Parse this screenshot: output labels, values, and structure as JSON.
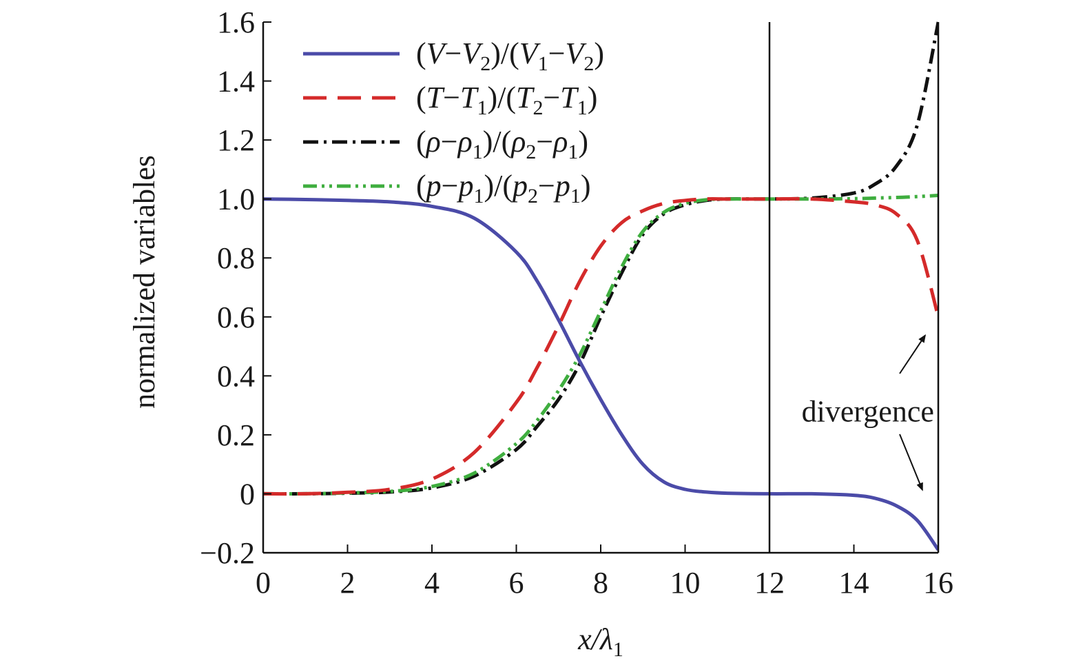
{
  "chart_data": {
    "type": "line",
    "xlabel": {
      "main": "x/λ",
      "sub": "1"
    },
    "ylabel": "normalized variables",
    "xlim": [
      0,
      16
    ],
    "ylim": [
      -0.2,
      1.6
    ],
    "xticks": [
      "0",
      "2",
      "4",
      "6",
      "8",
      "10",
      "12",
      "14",
      "16"
    ],
    "xtick_values": [
      0,
      2,
      4,
      6,
      8,
      10,
      12,
      14,
      16
    ],
    "yticks": [
      "−0.2",
      "0",
      "0.2",
      "0.4",
      "0.6",
      "0.8",
      "1.0",
      "1.2",
      "1.4",
      "1.6"
    ],
    "ytick_values": [
      -0.2,
      0,
      0.2,
      0.4,
      0.6,
      0.8,
      1.0,
      1.2,
      1.4,
      1.6
    ],
    "grid": false,
    "legend_position": "top-left",
    "reference_line_x": 12,
    "x": [
      0,
      1,
      2,
      3,
      4,
      5,
      6,
      6.5,
      7,
      7.5,
      8,
      8.5,
      9,
      9.5,
      10,
      10.5,
      11,
      12,
      13,
      14,
      14.5,
      15,
      15.5,
      16
    ],
    "series": [
      {
        "name_parts": [
          {
            "t": "(",
            "s": false
          },
          {
            "t": "V",
            "s": false
          },
          {
            "t": "−",
            "s": false
          },
          {
            "t": "V",
            "s": false
          },
          {
            "t": "2",
            "s": true
          },
          {
            "t": ")/(",
            "s": false
          },
          {
            "t": "V",
            "s": false
          },
          {
            "t": "1",
            "s": true
          },
          {
            "t": "−",
            "s": false
          },
          {
            "t": "V",
            "s": false
          },
          {
            "t": "2",
            "s": true
          },
          {
            "t": ")",
            "s": false
          }
        ],
        "color": "#4b4ba8",
        "dash": "",
        "values": [
          1.0,
          0.998,
          0.995,
          0.99,
          0.975,
          0.935,
          0.82,
          0.72,
          0.59,
          0.45,
          0.32,
          0.2,
          0.1,
          0.04,
          0.015,
          0.006,
          0.002,
          0.0,
          0.0,
          -0.005,
          -0.015,
          -0.04,
          -0.09,
          -0.19
        ]
      },
      {
        "name_parts": [
          {
            "t": "(",
            "s": false
          },
          {
            "t": "T",
            "s": false
          },
          {
            "t": "−",
            "s": false
          },
          {
            "t": "T",
            "s": false
          },
          {
            "t": "1",
            "s": true
          },
          {
            "t": ")/(",
            "s": false
          },
          {
            "t": "T",
            "s": false
          },
          {
            "t": "2",
            "s": true
          },
          {
            "t": "−",
            "s": false
          },
          {
            "t": "T",
            "s": false
          },
          {
            "t": "1",
            "s": true
          },
          {
            "t": ")",
            "s": false
          }
        ],
        "color": "#d42a2a",
        "dash": "34,16",
        "values": [
          0.0,
          0.0,
          0.005,
          0.015,
          0.05,
          0.14,
          0.31,
          0.43,
          0.57,
          0.72,
          0.84,
          0.92,
          0.96,
          0.985,
          0.995,
          1.0,
          1.0,
          1.0,
          1.0,
          0.99,
          0.98,
          0.95,
          0.86,
          0.6
        ]
      },
      {
        "name_parts": [
          {
            "t": "(",
            "s": false
          },
          {
            "t": "ρ",
            "s": false
          },
          {
            "t": "−",
            "s": false
          },
          {
            "t": "ρ",
            "s": false
          },
          {
            "t": "1",
            "s": true
          },
          {
            "t": ")/(",
            "s": false
          },
          {
            "t": "ρ",
            "s": false
          },
          {
            "t": "2",
            "s": true
          },
          {
            "t": "−",
            "s": false
          },
          {
            "t": "ρ",
            "s": false
          },
          {
            "t": "1",
            "s": true
          },
          {
            "t": ")",
            "s": false
          }
        ],
        "color": "#111111",
        "dash": "22,8,4,8",
        "values": [
          0.0,
          0.0,
          0.002,
          0.006,
          0.02,
          0.06,
          0.15,
          0.23,
          0.32,
          0.44,
          0.6,
          0.75,
          0.88,
          0.95,
          0.98,
          0.995,
          1.0,
          1.0,
          1.003,
          1.02,
          1.05,
          1.11,
          1.25,
          1.6
        ]
      },
      {
        "name_parts": [
          {
            "t": "(",
            "s": false
          },
          {
            "t": "p",
            "s": false
          },
          {
            "t": "−",
            "s": false
          },
          {
            "t": "p",
            "s": false
          },
          {
            "t": "1",
            "s": true
          },
          {
            "t": ")/(",
            "s": false
          },
          {
            "t": "p",
            "s": false
          },
          {
            "t": "2",
            "s": true
          },
          {
            "t": "−",
            "s": false
          },
          {
            "t": "p",
            "s": false
          },
          {
            "t": "1",
            "s": true
          },
          {
            "t": ")",
            "s": false
          }
        ],
        "color": "#3fae3f",
        "dash": "20,7,4,7,4,7",
        "values": [
          0.0,
          0.0,
          0.003,
          0.008,
          0.025,
          0.07,
          0.17,
          0.25,
          0.35,
          0.47,
          0.62,
          0.77,
          0.89,
          0.955,
          0.985,
          0.997,
          1.0,
          1.0,
          1.0,
          1.001,
          1.003,
          1.005,
          1.008,
          1.012
        ]
      }
    ],
    "annotation": {
      "text": "divergence",
      "x": 15.9,
      "y": 0.28,
      "arrow_targets": [
        {
          "x": 15.95,
          "y": 0.57
        },
        {
          "x": 15.95,
          "y": -0.01
        }
      ]
    }
  }
}
